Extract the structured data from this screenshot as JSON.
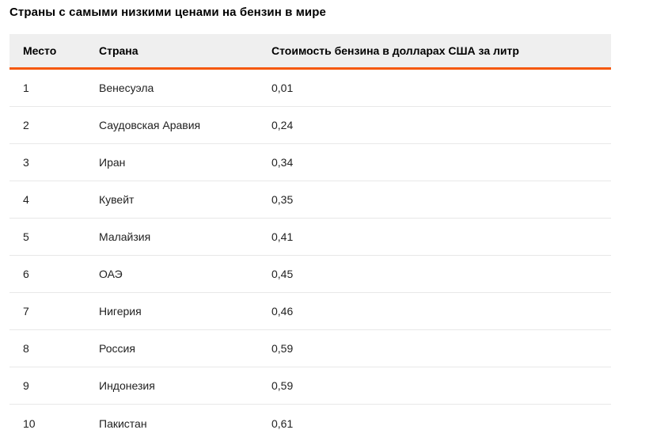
{
  "page": {
    "title": "Страны с самыми низкими ценами на бензин в мире"
  },
  "table": {
    "accent_color": "#f5580a",
    "header_bg": "#efefef",
    "separator_color": "#e8e8e8",
    "columns": [
      "Место",
      "Страна",
      "Стоимость бензина в долларах США за литр"
    ],
    "rows": [
      {
        "place": "1",
        "country": "Венесуэла",
        "price": "0,01"
      },
      {
        "place": "2",
        "country": "Саудовская Аравия",
        "price": "0,24"
      },
      {
        "place": "3",
        "country": "Иран",
        "price": "0,34"
      },
      {
        "place": "4",
        "country": "Кувейт",
        "price": "0,35"
      },
      {
        "place": "5",
        "country": "Малайзия",
        "price": "0,41"
      },
      {
        "place": "6",
        "country": "ОАЭ",
        "price": "0,45"
      },
      {
        "place": "7",
        "country": "Нигерия",
        "price": "0,46"
      },
      {
        "place": "8",
        "country": "Россия",
        "price": "0,59"
      },
      {
        "place": "9",
        "country": "Индонезия",
        "price": "0,59"
      },
      {
        "place": "10",
        "country": "Пакистан",
        "price": "0,61"
      }
    ]
  }
}
